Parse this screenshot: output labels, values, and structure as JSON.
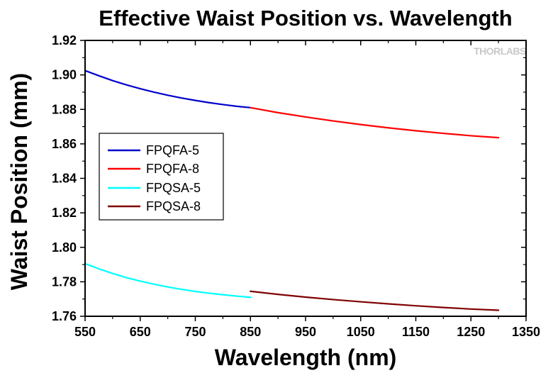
{
  "chart_data": {
    "type": "line",
    "title": "Effective Waist Position vs. Wavelength",
    "xlabel": "Wavelength (nm)",
    "ylabel": "Waist Position (mm)",
    "xlim": [
      550,
      1350
    ],
    "ylim": [
      1.76,
      1.92
    ],
    "xticks": [
      550,
      650,
      750,
      850,
      950,
      1050,
      1150,
      1250,
      1350
    ],
    "yticks": [
      1.76,
      1.78,
      1.8,
      1.82,
      1.84,
      1.86,
      1.88,
      1.9,
      1.92
    ],
    "xtick_labels": [
      "550",
      "650",
      "750",
      "850",
      "950",
      "1050",
      "1150",
      "1250",
      "1350"
    ],
    "ytick_labels": [
      "1.76",
      "1.78",
      "1.80",
      "1.82",
      "1.84",
      "1.86",
      "1.88",
      "1.90",
      "1.92"
    ],
    "grid": false,
    "legend_position": "left-middle",
    "watermark": "THORLABS",
    "series": [
      {
        "name": "FPQFA-5",
        "color": "#0000cc",
        "x": [
          550,
          575,
          600,
          625,
          650,
          675,
          700,
          725,
          750,
          775,
          800,
          825,
          850
        ],
        "y": [
          1.9025,
          1.8995,
          1.8967,
          1.8942,
          1.892,
          1.89,
          1.8882,
          1.8866,
          1.8852,
          1.8839,
          1.8828,
          1.8818,
          1.881
        ]
      },
      {
        "name": "FPQFA-8",
        "color": "#ff0000",
        "x": [
          850,
          900,
          950,
          1000,
          1050,
          1100,
          1150,
          1200,
          1250,
          1300
        ],
        "y": [
          1.881,
          1.8781,
          1.8756,
          1.8733,
          1.8712,
          1.8693,
          1.8676,
          1.8661,
          1.8647,
          1.8636
        ]
      },
      {
        "name": "FPQSA-5",
        "color": "#00ffff",
        "x": [
          550,
          575,
          600,
          625,
          650,
          675,
          700,
          725,
          750,
          775,
          800,
          825,
          850
        ],
        "y": [
          1.7905,
          1.7875,
          1.7848,
          1.7824,
          1.7804,
          1.7786,
          1.777,
          1.7756,
          1.7744,
          1.7734,
          1.7725,
          1.7717,
          1.771
        ]
      },
      {
        "name": "FPQSA-8",
        "color": "#800000",
        "x": [
          850,
          900,
          950,
          1000,
          1050,
          1100,
          1150,
          1200,
          1250,
          1300
        ],
        "y": [
          1.7745,
          1.7727,
          1.7711,
          1.7697,
          1.7684,
          1.7672,
          1.7661,
          1.7651,
          1.7642,
          1.7635
        ]
      }
    ]
  }
}
